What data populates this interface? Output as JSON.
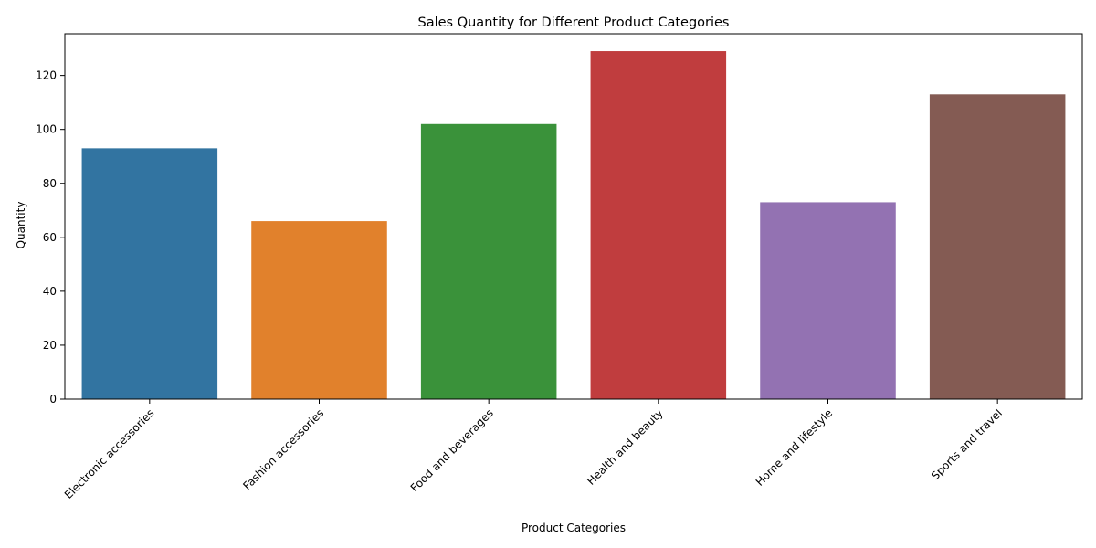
{
  "chart_data": {
    "type": "bar",
    "title": "Sales Quantity for Different Product Categories",
    "xlabel": "Product Categories",
    "ylabel": "Quantity",
    "categories": [
      "Electronic accessories",
      "Fashion accessories",
      "Food and beverages",
      "Health and beauty",
      "Home and lifestyle",
      "Sports and travel"
    ],
    "values": [
      93,
      66,
      102,
      129,
      73,
      113
    ],
    "colors": [
      "#3274a1",
      "#e1812c",
      "#3a923a",
      "#c03d3e",
      "#9372b2",
      "#845b53"
    ],
    "ylim": [
      0,
      135.45
    ],
    "yticks": [
      0,
      20,
      40,
      60,
      80,
      100,
      120
    ],
    "grid": false,
    "legend": "none"
  }
}
